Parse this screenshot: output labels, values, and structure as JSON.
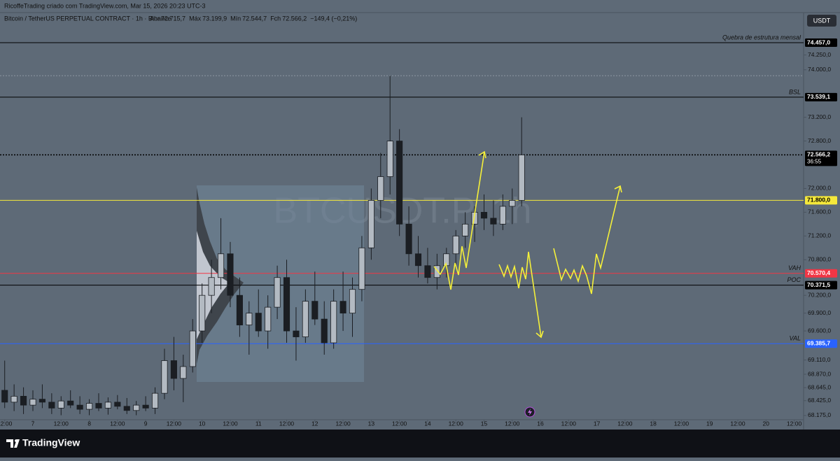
{
  "header": {
    "credit": "RicoffeTrading criado com TradingView.com, Mar 15, 2026 20:23 UTC-3",
    "brand": "TradingView"
  },
  "chart_data": {
    "type": "candlestick",
    "title": "Bitcoin / TetherUS PERPETUAL CONTRACT · 1h · Binance",
    "legend": {
      "open": {
        "name": "Abr",
        "value": 72715.7,
        "label": "72.715,7"
      },
      "high": {
        "name": "Máx",
        "value": 73199.9,
        "label": "73.199,9"
      },
      "low": {
        "name": "Mín",
        "value": 72544.7,
        "label": "72.544,7"
      },
      "close": {
        "name": "Fch",
        "value": 72566.2,
        "label": "72.566,2"
      },
      "change": "−149,4 (−0,21%)"
    },
    "watermark": "BTCUSDT.P, 1h",
    "currency": "USDT",
    "countdown": "36:55",
    "up_color": "#b3bac2",
    "down_color": "#1b1e23",
    "x": [
      -12,
      -8,
      -4,
      0,
      4,
      8,
      12,
      16,
      20,
      24,
      28,
      32,
      36,
      40,
      44,
      48,
      52,
      56,
      60,
      64,
      68,
      72,
      76,
      80,
      84,
      88,
      92,
      96,
      100,
      104,
      108,
      112,
      116,
      120,
      124,
      128,
      132,
      136,
      140,
      144,
      148,
      152,
      156,
      160,
      164,
      168,
      172,
      176,
      180,
      184,
      188,
      192,
      196,
      200,
      204,
      208
    ],
    "open": [
      68600,
      68400,
      68500,
      68350,
      68450,
      68400,
      68300,
      68420,
      68350,
      68280,
      68380,
      68300,
      68400,
      68330,
      68260,
      68350,
      68300,
      68550,
      69100,
      68800,
      69000,
      69600,
      70200,
      70500,
      70900,
      70200,
      69700,
      69900,
      69600,
      70000,
      70500,
      69600,
      69500,
      70100,
      69800,
      69400,
      70100,
      69900,
      70300,
      71000,
      71800,
      72200,
      72800,
      71400,
      70900,
      70700,
      70500,
      70700,
      70900,
      71200,
      71400,
      71600,
      71500,
      71400,
      71700,
      71800
    ],
    "high": [
      69100,
      68700,
      68650,
      68600,
      68700,
      68550,
      68500,
      68600,
      68500,
      68450,
      68550,
      68480,
      68520,
      68470,
      68420,
      68500,
      68650,
      69300,
      69500,
      69200,
      69800,
      70400,
      70800,
      71500,
      71100,
      70500,
      70100,
      70300,
      70200,
      70700,
      70800,
      70000,
      70300,
      70600,
      70100,
      70300,
      70600,
      70500,
      71200,
      72000,
      72600,
      73900,
      73000,
      71700,
      71200,
      71000,
      70900,
      71000,
      71300,
      71600,
      71700,
      71900,
      71800,
      71900,
      72000,
      73200
    ],
    "low": [
      68300,
      68250,
      68200,
      68250,
      68300,
      68200,
      68180,
      68300,
      68200,
      68180,
      68250,
      68190,
      68280,
      68200,
      68180,
      68250,
      68200,
      68450,
      68600,
      68400,
      68900,
      69400,
      69900,
      70300,
      70000,
      69500,
      69200,
      69500,
      69300,
      69800,
      69400,
      69100,
      69400,
      69700,
      69200,
      69300,
      69600,
      69500,
      70100,
      70800,
      71500,
      71900,
      71200,
      70700,
      70500,
      70400,
      70300,
      70500,
      70700,
      71000,
      71100,
      71300,
      71200,
      71300,
      71400,
      71700
    ],
    "close": [
      68400,
      68500,
      68350,
      68450,
      68400,
      68300,
      68420,
      68350,
      68280,
      68380,
      68300,
      68400,
      68330,
      68260,
      68350,
      68300,
      68550,
      69100,
      68800,
      69000,
      69600,
      70200,
      70500,
      70900,
      70200,
      69700,
      69900,
      69600,
      70000,
      70500,
      69600,
      69500,
      70100,
      69800,
      69400,
      70100,
      69900,
      70300,
      71000,
      71800,
      72200,
      72800,
      71400,
      70900,
      70700,
      70500,
      70700,
      70900,
      71200,
      71400,
      71600,
      71500,
      71400,
      71700,
      71800,
      72566.2
    ],
    "xlim": [
      -14,
      328
    ],
    "xticks": [
      {
        "value": -12,
        "label": "12:00"
      },
      {
        "value": 0,
        "label": "7"
      },
      {
        "value": 12,
        "label": "12:00"
      },
      {
        "value": 24,
        "label": "8"
      },
      {
        "value": 36,
        "label": "12:00"
      },
      {
        "value": 48,
        "label": "9"
      },
      {
        "value": 60,
        "label": "12:00"
      },
      {
        "value": 72,
        "label": "10"
      },
      {
        "value": 84,
        "label": "12:00"
      },
      {
        "value": 96,
        "label": "11"
      },
      {
        "value": 108,
        "label": "12:00"
      },
      {
        "value": 120,
        "label": "12"
      },
      {
        "value": 132,
        "label": "12:00"
      },
      {
        "value": 144,
        "label": "13"
      },
      {
        "value": 156,
        "label": "12:00"
      },
      {
        "value": 168,
        "label": "14"
      },
      {
        "value": 180,
        "label": "12:00"
      },
      {
        "value": 192,
        "label": "15"
      },
      {
        "value": 204,
        "label": "12:00"
      },
      {
        "value": 216,
        "label": "16"
      },
      {
        "value": 228,
        "label": "12:00"
      },
      {
        "value": 240,
        "label": "17"
      },
      {
        "value": 252,
        "label": "12:00"
      },
      {
        "value": 264,
        "label": "18"
      },
      {
        "value": 276,
        "label": "12:00"
      },
      {
        "value": 288,
        "label": "19"
      },
      {
        "value": 300,
        "label": "12:00"
      },
      {
        "value": 312,
        "label": "20"
      },
      {
        "value": 324,
        "label": "12:00"
      }
    ],
    "ylim": [
      68104,
      74964
    ],
    "yticks": [
      {
        "value": 74250,
        "label": "74.250,0"
      },
      {
        "value": 74000,
        "label": "74.000,0"
      },
      {
        "value": 73200,
        "label": "73.200,0"
      },
      {
        "value": 72800,
        "label": "72.800,0"
      },
      {
        "value": 72000,
        "label": "72.000,0"
      },
      {
        "value": 71600,
        "label": "71.600,0"
      },
      {
        "value": 71200,
        "label": "71.200,0"
      },
      {
        "value": 70800,
        "label": "70.800,0"
      },
      {
        "value": 70200,
        "label": "70.200,0"
      },
      {
        "value": 69900,
        "label": "69.900,0"
      },
      {
        "value": 69600,
        "label": "69.600,0"
      },
      {
        "value": 69110,
        "label": "69.110,0"
      },
      {
        "value": 68870,
        "label": "68.870,0"
      },
      {
        "value": 68645,
        "label": "68.645,0"
      },
      {
        "value": 68425,
        "label": "68.425,0"
      },
      {
        "value": 68175,
        "label": "68.175,0"
      }
    ],
    "levels": [
      {
        "name": "Quebra de estrutura mensal",
        "value": 74457,
        "label": "74.457,0",
        "color": "#000000",
        "text_color": "#ffffff",
        "style": "solid"
      },
      {
        "name": "BSL",
        "value": 73539.1,
        "label": "73.539,1",
        "color": "#000000",
        "text_color": "#ffffff",
        "style": "solid"
      },
      {
        "value": 72566.2,
        "label": "72.566,2",
        "color": "#000000",
        "text_color": "#ffffff",
        "style": "dotted"
      },
      {
        "value": 71800,
        "label": "71.800,0",
        "color": "#f5e83a",
        "text_color": "#000000",
        "style": "solid"
      },
      {
        "name": "VAH",
        "value": 70570.4,
        "label": "70.570,4",
        "color": "#f23645",
        "text_color": "#ffffff",
        "style": "solid"
      },
      {
        "name": "POC",
        "value": 70371.5,
        "label": "70.371,5",
        "color": "#000000",
        "text_color": "#ffffff",
        "style": "solid"
      },
      {
        "name": "VAL",
        "value": 69385.7,
        "label": "69.385,7",
        "color": "#2962ff",
        "text_color": "#ffffff",
        "style": "solid"
      }
    ]
  }
}
